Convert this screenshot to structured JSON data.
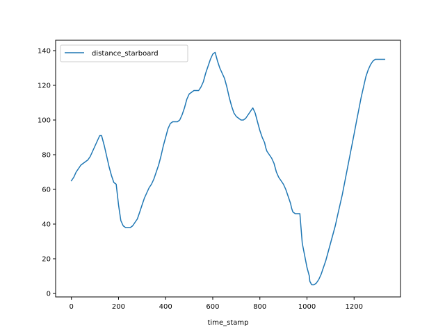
{
  "chart_data": {
    "type": "line",
    "xlabel": "time_stamp",
    "ylabel": "",
    "xlim": [
      -67,
      1397
    ],
    "ylim": [
      -2,
      146
    ],
    "xticks": [
      0,
      200,
      400,
      600,
      800,
      1000,
      1200
    ],
    "yticks": [
      0,
      20,
      40,
      60,
      80,
      100,
      120,
      140
    ],
    "grid": false,
    "legend_position": "upper left",
    "series": [
      {
        "name": "distance_starboard",
        "color": "#1f77b4",
        "x": [
          0,
          10,
          20,
          30,
          40,
          50,
          60,
          70,
          80,
          90,
          100,
          110,
          120,
          128,
          140,
          150,
          160,
          170,
          180,
          190,
          200,
          210,
          220,
          230,
          240,
          250,
          260,
          270,
          280,
          290,
          300,
          310,
          320,
          330,
          340,
          350,
          360,
          370,
          380,
          390,
          400,
          410,
          420,
          430,
          440,
          450,
          460,
          470,
          480,
          490,
          500,
          510,
          520,
          530,
          540,
          550,
          560,
          570,
          580,
          590,
          600,
          610,
          620,
          630,
          640,
          650,
          660,
          670,
          680,
          690,
          700,
          710,
          720,
          730,
          740,
          750,
          760,
          770,
          780,
          790,
          800,
          810,
          820,
          825,
          830,
          840,
          850,
          860,
          870,
          880,
          890,
          900,
          910,
          920,
          930,
          935,
          940,
          950,
          960,
          970,
          980,
          990,
          1000,
          1010,
          1012,
          1020,
          1030,
          1040,
          1050,
          1060,
          1070,
          1080,
          1090,
          1100,
          1110,
          1120,
          1130,
          1140,
          1150,
          1160,
          1170,
          1180,
          1190,
          1200,
          1210,
          1220,
          1230,
          1240,
          1250,
          1260,
          1270,
          1280,
          1290,
          1300,
          1310,
          1320,
          1330
        ],
        "y": [
          65,
          67,
          70,
          72,
          74,
          75,
          76,
          77,
          79,
          82,
          85,
          88,
          91,
          91,
          85,
          79,
          73,
          68,
          64,
          63,
          51,
          42,
          39,
          38,
          38,
          38,
          39,
          41,
          43,
          47,
          51,
          55,
          58,
          61,
          63,
          66,
          70,
          74,
          79,
          85,
          90,
          95,
          98,
          99,
          99,
          99,
          100,
          103,
          107,
          112,
          115,
          116,
          117,
          117,
          117,
          119,
          122,
          127,
          131,
          135,
          138,
          139,
          134,
          130,
          127,
          124,
          119,
          113,
          108,
          104,
          102,
          101,
          100,
          100,
          101,
          103,
          105,
          107,
          104,
          99,
          94,
          90,
          87,
          84,
          82,
          80,
          78,
          75,
          70,
          67,
          65,
          63,
          60,
          56,
          52,
          49,
          47,
          46,
          46,
          46,
          29,
          22,
          15,
          10,
          7,
          5,
          5,
          6,
          8,
          11,
          15,
          19,
          24,
          29,
          34,
          39,
          45,
          51,
          57,
          64,
          71,
          78,
          85,
          92,
          99,
          106,
          113,
          119,
          125,
          129,
          132,
          134,
          135,
          135,
          135,
          135,
          135
        ]
      }
    ]
  }
}
